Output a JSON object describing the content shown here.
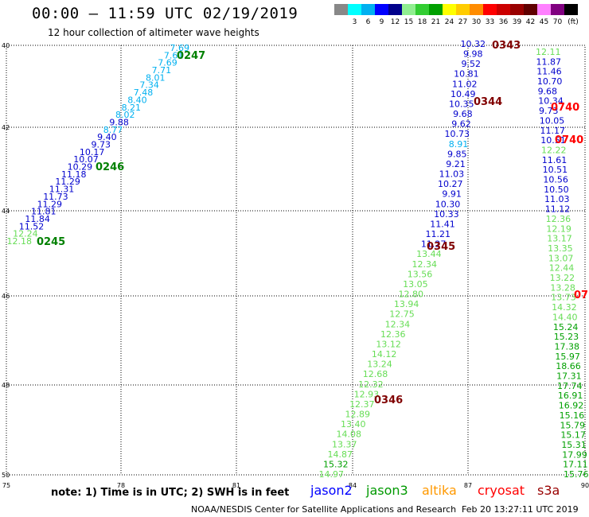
{
  "header": {
    "title": "00:00 – 11:59 UTC 02/19/2019",
    "subtitle": "12 hour collection of altimeter wave heights"
  },
  "color_scale": {
    "unit": "(ft)",
    "colors": [
      "#888888",
      "#00ffff",
      "#00b0f0",
      "#0000ff",
      "#00008b",
      "#90ee90",
      "#32cd32",
      "#00a000",
      "#ffff00",
      "#ffcc00",
      "#ff8c00",
      "#ff0000",
      "#cc0000",
      "#990000",
      "#600000",
      "#ff80ff",
      "#800080",
      "#000000"
    ],
    "labels": [
      "3",
      "6",
      "9",
      "12",
      "15",
      "18",
      "21",
      "24",
      "27",
      "30",
      "33",
      "36",
      "39",
      "42",
      "45",
      "70"
    ]
  },
  "axes": {
    "x_ticks": [
      "75",
      "78",
      "81",
      "84",
      "87",
      "90"
    ],
    "y_ticks": [
      "40",
      "42",
      "44",
      "46",
      "48",
      "50"
    ]
  },
  "tracks": [
    {
      "name": "track-0247",
      "labels": [
        {
          "t": "7.69",
          "c": "#00b0f0"
        },
        {
          "t": "7.61",
          "c": "#00b0f0"
        },
        {
          "t": "7.69",
          "c": "#00b0f0"
        },
        {
          "t": "7.71",
          "c": "#00b0f0"
        },
        {
          "t": "8.01",
          "c": "#00b0f0"
        },
        {
          "t": "7.34",
          "c": "#00b0f0"
        },
        {
          "t": "7.48",
          "c": "#00b0f0"
        },
        {
          "t": "8.40",
          "c": "#00b0f0"
        },
        {
          "t": "8.21",
          "c": "#00b0f0"
        },
        {
          "t": "8.02",
          "c": "#00b0f0"
        },
        {
          "t": "9.88",
          "c": "#0000cd"
        },
        {
          "t": "8.77",
          "c": "#00b0f0"
        },
        {
          "t": "9.40",
          "c": "#0000cd"
        },
        {
          "t": "9.73",
          "c": "#0000cd"
        },
        {
          "t": "10.17",
          "c": "#0000cd"
        },
        {
          "t": "10.07",
          "c": "#0000cd"
        },
        {
          "t": "10.29",
          "c": "#0000cd"
        },
        {
          "t": "11.18",
          "c": "#0000cd"
        },
        {
          "t": "11.29",
          "c": "#0000cd"
        },
        {
          "t": "11.31",
          "c": "#0000cd"
        },
        {
          "t": "11.73",
          "c": "#0000cd"
        },
        {
          "t": "11.29",
          "c": "#0000cd"
        },
        {
          "t": "11.81",
          "c": "#0000cd"
        },
        {
          "t": "11.84",
          "c": "#0000cd"
        },
        {
          "t": "11.52",
          "c": "#0000cd"
        },
        {
          "t": "12.24",
          "c": "#66dd55"
        },
        {
          "t": "12.18",
          "c": "#66dd55"
        }
      ]
    },
    {
      "name": "track-0343",
      "labels": [
        {
          "t": "10.32",
          "c": "#0000cd"
        },
        {
          "t": "9.98",
          "c": "#0000cd"
        },
        {
          "t": "9.52",
          "c": "#0000cd"
        },
        {
          "t": "10.81",
          "c": "#0000cd"
        },
        {
          "t": "11.02",
          "c": "#0000cd"
        },
        {
          "t": "10.49",
          "c": "#0000cd"
        },
        {
          "t": "10.35",
          "c": "#0000cd"
        },
        {
          "t": "9.68",
          "c": "#0000cd"
        },
        {
          "t": "9.62",
          "c": "#0000cd"
        },
        {
          "t": "10.73",
          "c": "#0000cd"
        },
        {
          "t": "8.91",
          "c": "#00b0f0"
        },
        {
          "t": "9.85",
          "c": "#0000cd"
        },
        {
          "t": "9.21",
          "c": "#0000cd"
        },
        {
          "t": "11.03",
          "c": "#0000cd"
        },
        {
          "t": "10.27",
          "c": "#0000cd"
        },
        {
          "t": "9.91",
          "c": "#0000cd"
        },
        {
          "t": "10.30",
          "c": "#0000cd"
        },
        {
          "t": "10.33",
          "c": "#0000cd"
        },
        {
          "t": "11.41",
          "c": "#0000cd"
        },
        {
          "t": "11.21",
          "c": "#0000cd"
        },
        {
          "t": "11.27",
          "c": "#0000cd"
        },
        {
          "t": "13.44",
          "c": "#66dd55"
        },
        {
          "t": "12.34",
          "c": "#66dd55"
        },
        {
          "t": "13.56",
          "c": "#66dd55"
        },
        {
          "t": "13.05",
          "c": "#66dd55"
        },
        {
          "t": "12.80",
          "c": "#66dd55"
        },
        {
          "t": "13.94",
          "c": "#66dd55"
        },
        {
          "t": "12.75",
          "c": "#66dd55"
        },
        {
          "t": "12.34",
          "c": "#66dd55"
        },
        {
          "t": "12.36",
          "c": "#66dd55"
        },
        {
          "t": "13.12",
          "c": "#66dd55"
        },
        {
          "t": "14.12",
          "c": "#66dd55"
        },
        {
          "t": "13.24",
          "c": "#66dd55"
        },
        {
          "t": "12.68",
          "c": "#66dd55"
        },
        {
          "t": "12.32",
          "c": "#66dd55"
        },
        {
          "t": "12.93",
          "c": "#66dd55"
        },
        {
          "t": "12.37",
          "c": "#66dd55"
        },
        {
          "t": "12.89",
          "c": "#66dd55"
        },
        {
          "t": "13.40",
          "c": "#66dd55"
        },
        {
          "t": "14.08",
          "c": "#66dd55"
        },
        {
          "t": "13.37",
          "c": "#66dd55"
        },
        {
          "t": "14.87",
          "c": "#66dd55"
        },
        {
          "t": "15.32",
          "c": "#00a000"
        },
        {
          "t": "14.97",
          "c": "#66dd55"
        }
      ]
    },
    {
      "name": "track-0740",
      "labels": [
        {
          "t": "12.11",
          "c": "#66dd55"
        },
        {
          "t": "11.87",
          "c": "#0000cd"
        },
        {
          "t": "11.46",
          "c": "#0000cd"
        },
        {
          "t": "10.70",
          "c": "#0000cd"
        },
        {
          "t": "9.68",
          "c": "#0000cd"
        },
        {
          "t": "10.34",
          "c": "#0000cd"
        },
        {
          "t": "9.73",
          "c": "#0000cd"
        },
        {
          "t": "10.05",
          "c": "#0000cd"
        },
        {
          "t": "11.17",
          "c": "#0000cd"
        },
        {
          "t": "10.51",
          "c": "#0000cd"
        },
        {
          "t": "12.22",
          "c": "#66dd55"
        },
        {
          "t": "11.61",
          "c": "#0000cd"
        },
        {
          "t": "10.51",
          "c": "#0000cd"
        },
        {
          "t": "10.56",
          "c": "#0000cd"
        },
        {
          "t": "10.50",
          "c": "#0000cd"
        },
        {
          "t": "11.03",
          "c": "#0000cd"
        },
        {
          "t": "11.12",
          "c": "#0000cd"
        },
        {
          "t": "12.36",
          "c": "#66dd55"
        },
        {
          "t": "12.19",
          "c": "#66dd55"
        },
        {
          "t": "13.17",
          "c": "#66dd55"
        },
        {
          "t": "13.35",
          "c": "#66dd55"
        },
        {
          "t": "13.07",
          "c": "#66dd55"
        },
        {
          "t": "12.44",
          "c": "#66dd55"
        },
        {
          "t": "13.22",
          "c": "#66dd55"
        },
        {
          "t": "13.28",
          "c": "#66dd55"
        },
        {
          "t": "13.73",
          "c": "#66dd55"
        },
        {
          "t": "14.32",
          "c": "#66dd55"
        },
        {
          "t": "14.40",
          "c": "#66dd55"
        },
        {
          "t": "15.24",
          "c": "#00a000"
        },
        {
          "t": "15.23",
          "c": "#00a000"
        },
        {
          "t": "17.38",
          "c": "#00a000"
        },
        {
          "t": "15.97",
          "c": "#00a000"
        },
        {
          "t": "18.66",
          "c": "#00a000"
        },
        {
          "t": "17.31",
          "c": "#00a000"
        },
        {
          "t": "17.74",
          "c": "#00a000"
        },
        {
          "t": "16.91",
          "c": "#00a000"
        },
        {
          "t": "16.92",
          "c": "#00a000"
        },
        {
          "t": "15.16",
          "c": "#00a000"
        },
        {
          "t": "15.79",
          "c": "#00a000"
        },
        {
          "t": "15.17",
          "c": "#00a000"
        },
        {
          "t": "15.31",
          "c": "#00a000"
        },
        {
          "t": "17.99",
          "c": "#00a000"
        },
        {
          "t": "17.11",
          "c": "#00a000"
        },
        {
          "t": "15.76",
          "c": "#00a000"
        }
      ]
    }
  ],
  "time_labels": [
    {
      "t": "0247",
      "c": "#008000"
    },
    {
      "t": "0246",
      "c": "#008000"
    },
    {
      "t": "0245",
      "c": "#008000"
    },
    {
      "t": "0343",
      "c": "#800000"
    },
    {
      "t": "0344",
      "c": "#800000"
    },
    {
      "t": "0345",
      "c": "#800000"
    },
    {
      "t": "0346",
      "c": "#800000"
    },
    {
      "t": "0740",
      "c": "#ff0000"
    },
    {
      "t": "0740",
      "c": "#ff0000"
    },
    {
      "t": "07",
      "c": "#ff0000"
    }
  ],
  "footer": {
    "note": "note: 1) Time is in UTC; 2) SWH is in feet",
    "satellites": [
      {
        "name": "jason2",
        "color": "#0000ff"
      },
      {
        "name": "jason3",
        "color": "#009900"
      },
      {
        "name": "altika",
        "color": "#ff9900"
      },
      {
        "name": "cryosat",
        "color": "#ff0000"
      },
      {
        "name": "s3a",
        "color": "#990000"
      }
    ],
    "credit": "NOAA/NESDIS Center for Satellite Applications and Research",
    "timestamp": "Feb 20 13:27:11 UTC 2019"
  }
}
